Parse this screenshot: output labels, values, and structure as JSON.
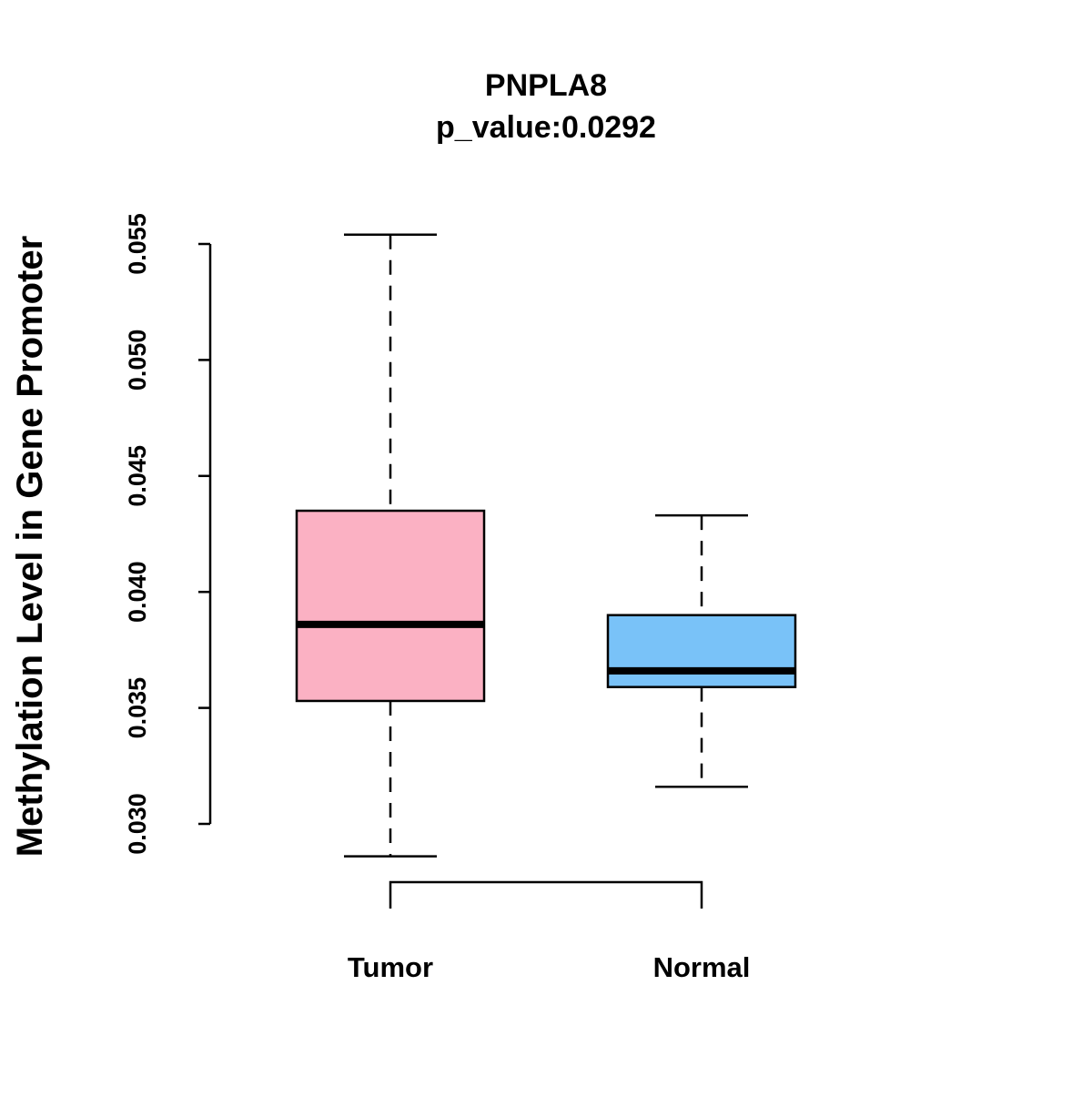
{
  "chart_data": {
    "type": "box",
    "title": "PNPLA8",
    "subtitle": "p_value:0.0292",
    "xlabel": "",
    "ylabel": "Methylation Level in Gene Promoter",
    "ylim": [
      0.0275,
      0.0558
    ],
    "yticks": [
      "0.030",
      "0.035",
      "0.040",
      "0.045",
      "0.050",
      "0.055"
    ],
    "ytick_values": [
      0.03,
      0.035,
      0.04,
      0.045,
      0.05,
      0.055
    ],
    "grid": false,
    "categories": [
      "Tumor",
      "Normal"
    ],
    "series": [
      {
        "name": "Tumor",
        "color": "#FBB1C3",
        "whisker_low": 0.0286,
        "q1": 0.0353,
        "median": 0.0386,
        "q3": 0.0435,
        "whisker_high": 0.0554
      },
      {
        "name": "Normal",
        "color": "#79C2F8",
        "whisker_low": 0.0316,
        "q1": 0.0359,
        "median": 0.0366,
        "q3": 0.039,
        "whisker_high": 0.0433
      }
    ],
    "annotations": [
      "significance bracket between Tumor and Normal"
    ]
  }
}
